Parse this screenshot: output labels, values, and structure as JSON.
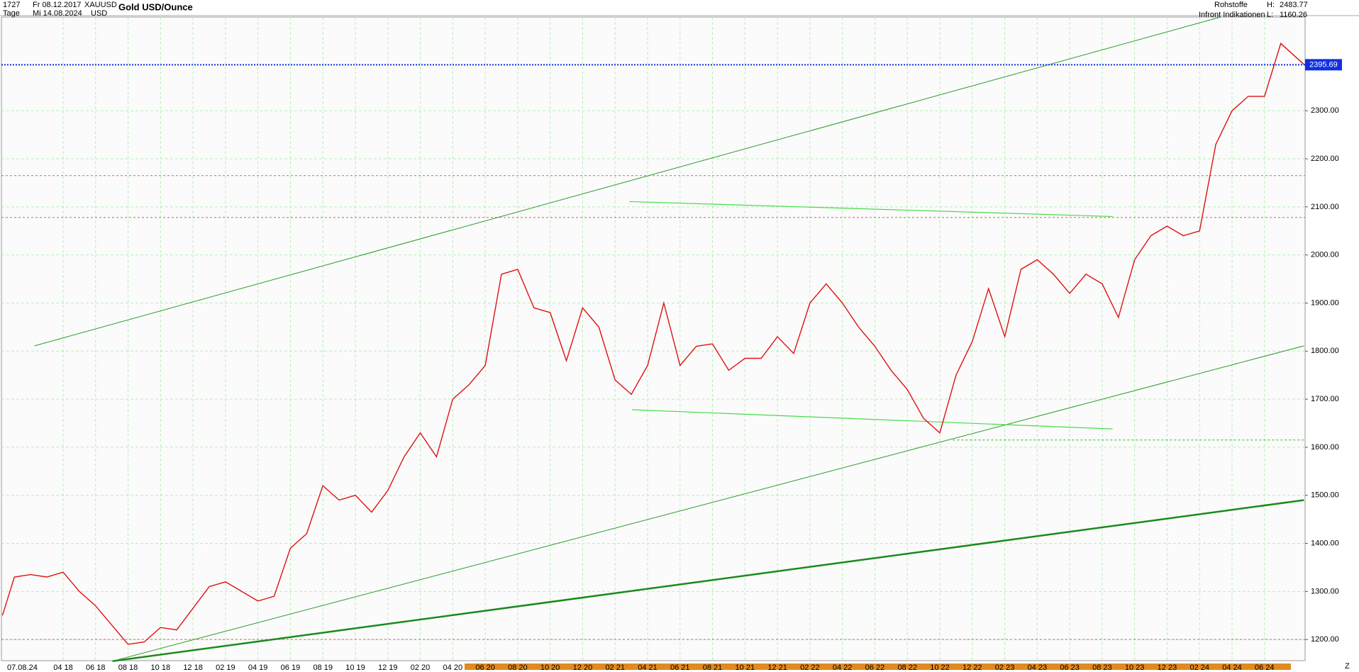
{
  "chart_data": {
    "type": "line",
    "title": "Gold USD/Ounce",
    "info": {
      "bars": 1727,
      "period": "Tage",
      "start": "Fr 08.12.2017",
      "end": "Mi 14.08.2024",
      "symbol": "XAUUSD",
      "currency": "USD",
      "group": "Rohstoffe",
      "source": "Infront Indikationen",
      "high_label": "H:",
      "high": 2483.77,
      "low_label": "L:",
      "low": 1160.26,
      "date_label": "07.08.24",
      "corner": "Z"
    },
    "x": [
      0.26,
      1,
      2,
      3,
      4,
      5,
      6,
      7,
      8,
      9,
      10,
      11,
      12,
      13,
      14,
      15,
      16,
      17,
      18,
      19,
      20,
      21,
      22,
      23,
      24,
      25,
      26,
      27,
      28,
      29,
      30,
      31,
      32,
      33,
      34,
      35,
      36,
      37,
      38,
      39,
      40,
      41,
      42,
      43,
      44,
      45,
      46,
      47,
      48,
      49,
      50,
      51,
      52,
      53,
      54,
      55,
      56,
      57,
      58,
      59,
      60,
      61,
      62,
      63,
      64,
      65,
      66,
      67,
      68,
      69,
      70,
      71,
      72,
      73,
      74,
      75,
      76,
      77,
      78,
      79,
      80.45
    ],
    "series": [
      {
        "name": "Gold USD/Ounce",
        "color": "#e01010",
        "values": [
          1250,
          1330,
          1335,
          1330,
          1340,
          1300,
          1270,
          1230,
          1190,
          1195,
          1225,
          1220,
          1265,
          1310,
          1320,
          1300,
          1280,
          1290,
          1390,
          1420,
          1520,
          1490,
          1500,
          1465,
          1510,
          1580,
          1630,
          1580,
          1700,
          1730,
          1770,
          1960,
          1970,
          1890,
          1880,
          1780,
          1890,
          1850,
          1740,
          1710,
          1770,
          1900,
          1770,
          1810,
          1815,
          1760,
          1785,
          1785,
          1830,
          1795,
          1900,
          1940,
          1900,
          1850,
          1810,
          1760,
          1720,
          1660,
          1630,
          1750,
          1820,
          1930,
          1830,
          1970,
          1990,
          1960,
          1920,
          1960,
          1940,
          1870,
          1990,
          2040,
          2060,
          2040,
          2050,
          2230,
          2300,
          2330,
          2330,
          2440,
          2395.69
        ]
      }
    ],
    "last_price": 2395.69,
    "xlim": [
      0.2,
      80.5
    ],
    "ylim": [
      1156,
      2495
    ],
    "xticks": [
      {
        "value": 4,
        "label": "04 18"
      },
      {
        "value": 6,
        "label": "06 18"
      },
      {
        "value": 8,
        "label": "08 18"
      },
      {
        "value": 10,
        "label": "10 18"
      },
      {
        "value": 12,
        "label": "12 18"
      },
      {
        "value": 14,
        "label": "02 19"
      },
      {
        "value": 16,
        "label": "04 19"
      },
      {
        "value": 18,
        "label": "06 19"
      },
      {
        "value": 20,
        "label": "08 19"
      },
      {
        "value": 22,
        "label": "10 19"
      },
      {
        "value": 24,
        "label": "12 19"
      },
      {
        "value": 26,
        "label": "02 20"
      },
      {
        "value": 28,
        "label": "04 20"
      },
      {
        "value": 30,
        "label": "06 20"
      },
      {
        "value": 32,
        "label": "08 20"
      },
      {
        "value": 34,
        "label": "10 20"
      },
      {
        "value": 36,
        "label": "12 20"
      },
      {
        "value": 38,
        "label": "02 21"
      },
      {
        "value": 40,
        "label": "04 21"
      },
      {
        "value": 42,
        "label": "06 21"
      },
      {
        "value": 44,
        "label": "08 21"
      },
      {
        "value": 46,
        "label": "10 21"
      },
      {
        "value": 48,
        "label": "12 21"
      },
      {
        "value": 50,
        "label": "02 22"
      },
      {
        "value": 52,
        "label": "04 22"
      },
      {
        "value": 54,
        "label": "06 22"
      },
      {
        "value": 56,
        "label": "08 22"
      },
      {
        "value": 58,
        "label": "10 22"
      },
      {
        "value": 60,
        "label": "12 22"
      },
      {
        "value": 62,
        "label": "02 23"
      },
      {
        "value": 64,
        "label": "04 23"
      },
      {
        "value": 66,
        "label": "06 23"
      },
      {
        "value": 68,
        "label": "08 23"
      },
      {
        "value": 70,
        "label": "10 23"
      },
      {
        "value": 72,
        "label": "12 23"
      },
      {
        "value": 74,
        "label": "02 24"
      },
      {
        "value": 76,
        "label": "04 24"
      },
      {
        "value": 78,
        "label": "06 24"
      }
    ],
    "yticks": [
      {
        "value": 1200,
        "label": "1200.00"
      },
      {
        "value": 1300,
        "label": "1300.00"
      },
      {
        "value": 1400,
        "label": "1400.00"
      },
      {
        "value": 1500,
        "label": "1500.00"
      },
      {
        "value": 1600,
        "label": "1600.00"
      },
      {
        "value": 1700,
        "label": "1700.00"
      },
      {
        "value": 1800,
        "label": "1800.00"
      },
      {
        "value": 1900,
        "label": "1900.00"
      },
      {
        "value": 2000,
        "label": "2000.00"
      },
      {
        "value": 2100,
        "label": "2100.00"
      },
      {
        "value": 2200,
        "label": "2200.00"
      },
      {
        "value": 2300,
        "label": "2300.00"
      }
    ],
    "grid": true,
    "trendlines": [
      {
        "x": [
          2.24,
          75.3
        ],
        "y": [
          1811,
          2495
        ],
        "color": "#2a9a2a",
        "width": 1
      },
      {
        "x": [
          7.04,
          80.43
        ],
        "y": [
          1155,
          1811
        ],
        "color": "#2a9a2a",
        "width": 1
      },
      {
        "x": [
          7.04,
          80.43
        ],
        "y": [
          1155,
          1490
        ],
        "color": "#1a8a1a",
        "width": 2.5
      },
      {
        "x": [
          38.88,
          68.64
        ],
        "y": [
          2111,
          2080
        ],
        "color": "#44dd44",
        "width": 1.2
      },
      {
        "x": [
          39.04,
          68.64
        ],
        "y": [
          1678,
          1638
        ],
        "color": "#44dd44",
        "width": 1.2
      }
    ],
    "hlines": [
      {
        "y": 2165,
        "x0": 0.2,
        "color": "#e06060"
      },
      {
        "y": 2078,
        "x0": 0.2,
        "color": "#e06060"
      },
      {
        "y": 1200,
        "x0": 0.2,
        "color": "#e06060"
      },
      {
        "y": 1615,
        "x0": 58.8,
        "color": "#22bb22"
      }
    ]
  }
}
